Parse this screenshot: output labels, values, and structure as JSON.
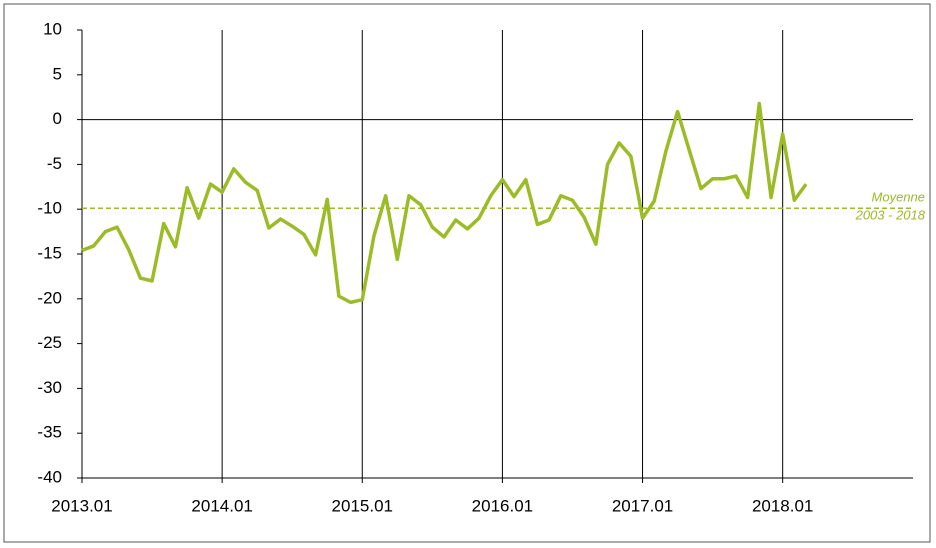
{
  "chart_data": {
    "type": "line",
    "x": [
      2013,
      2013.083,
      2013.167,
      2013.25,
      2013.333,
      2013.417,
      2013.5,
      2013.583,
      2013.667,
      2013.75,
      2013.833,
      2013.917,
      2014,
      2014.083,
      2014.167,
      2014.25,
      2014.333,
      2014.417,
      2014.5,
      2014.583,
      2014.667,
      2014.75,
      2014.833,
      2014.917,
      2015,
      2015.083,
      2015.167,
      2015.25,
      2015.333,
      2015.417,
      2015.5,
      2015.583,
      2015.667,
      2015.75,
      2015.833,
      2015.917,
      2016,
      2016.083,
      2016.167,
      2016.25,
      2016.333,
      2016.417,
      2016.5,
      2016.583,
      2016.667,
      2016.75,
      2016.833,
      2016.917,
      2017,
      2017.083,
      2017.167,
      2017.25,
      2017.333,
      2017.417,
      2017.5,
      2017.583,
      2017.667,
      2017.75,
      2017.833,
      2017.917,
      2018,
      2018.083,
      2018.167
    ],
    "series": [
      {
        "color": "#9bbb27",
        "values": [
          -14.6,
          -14.1,
          -12.5,
          -12.0,
          -14.5,
          -17.7,
          -18.0,
          -11.6,
          -14.2,
          -7.6,
          -11.0,
          -7.2,
          -8.1,
          -5.5,
          -7.0,
          -7.9,
          -12.1,
          -11.1,
          -11.9,
          -12.8,
          -15.1,
          -8.9,
          -19.7,
          -20.4,
          -20.1,
          -13.0,
          -8.5,
          -15.6,
          -8.5,
          -9.5,
          -12.0,
          -13.1,
          -11.2,
          -12.2,
          -11.0,
          -8.5,
          -6.7,
          -8.6,
          -6.7,
          -11.7,
          -11.2,
          -8.5,
          -9.0,
          -10.9,
          -13.9,
          -5.0,
          -2.6,
          -4.1,
          -11.0,
          -9.1,
          -3.5,
          0.9,
          -3.4,
          -7.7,
          -6.6,
          -6.6,
          -6.3,
          -8.7,
          1.8,
          -8.7,
          -1.6,
          -9.0,
          -7.2
        ]
      }
    ],
    "mean_line": {
      "value": -9.9,
      "color": "#9bbb27",
      "label": [
        "Moyenne",
        "2003 - 2018"
      ]
    },
    "xlim": [
      2013,
      2018.93
    ],
    "xticks": [
      {
        "value": 2013,
        "label": "2013.01"
      },
      {
        "value": 2014,
        "label": "2014.01"
      },
      {
        "value": 2015,
        "label": "2015.01"
      },
      {
        "value": 2016,
        "label": "2016.01"
      },
      {
        "value": 2017,
        "label": "2017.01"
      },
      {
        "value": 2018,
        "label": "2018.01"
      }
    ],
    "ylim": [
      -40,
      10
    ],
    "yticks": [
      10,
      5,
      0,
      -5,
      -10,
      -15,
      -20,
      -25,
      -30,
      -35,
      -40
    ],
    "grid": true
  }
}
